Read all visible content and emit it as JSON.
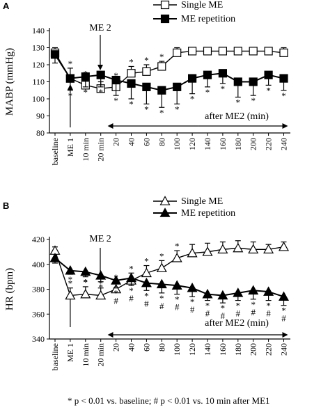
{
  "footnote": "* p < 0.01 vs. baseline; # p < 0.01 vs. 10 min after ME1",
  "chart_data": [
    {
      "type": "line",
      "panel_label": "A",
      "ylabel": "MABP (mmHg)",
      "ylim": [
        80,
        140
      ],
      "yticks": [
        80,
        90,
        100,
        110,
        120,
        130,
        140
      ],
      "categories": [
        "baseline",
        "ME 1",
        "10 min",
        "20 min",
        "20",
        "40",
        "60",
        "80",
        "100",
        "120",
        "140",
        "160",
        "180",
        "200",
        "220",
        "240"
      ],
      "legend_position": "top-right",
      "annotations": {
        "me2_label": "ME 2",
        "after_label": "after ME2 (min)"
      },
      "series": [
        {
          "name": "Single ME",
          "marker": "open-square",
          "values": [
            127,
            112,
            108,
            106,
            107,
            115,
            116,
            119,
            127,
            128,
            128,
            128,
            128,
            128,
            128,
            127
          ],
          "errors": [
            3,
            6,
            4,
            4,
            4,
            4,
            4,
            3,
            3,
            2,
            2,
            2,
            2,
            2,
            2,
            3
          ],
          "sig_star": [
            false,
            true,
            true,
            true,
            true,
            true,
            true,
            true,
            false,
            false,
            false,
            false,
            false,
            false,
            false,
            false
          ],
          "sig_hash": [
            false,
            false,
            false,
            false,
            false,
            false,
            false,
            false,
            false,
            false,
            false,
            false,
            false,
            false,
            false,
            false
          ]
        },
        {
          "name": "ME repetition",
          "marker": "filled-square",
          "values": [
            126,
            112,
            113,
            114,
            111,
            109,
            107,
            105,
            107,
            112,
            114,
            115,
            110,
            110,
            114,
            112
          ],
          "errors": [
            5,
            7,
            6,
            7,
            9,
            9,
            10,
            10,
            10,
            9,
            7,
            6,
            9,
            8,
            6,
            7
          ],
          "sig_star": [
            false,
            true,
            true,
            true,
            true,
            true,
            true,
            true,
            true,
            true,
            true,
            true,
            true,
            true,
            true,
            true
          ],
          "sig_hash": [
            false,
            false,
            false,
            false,
            false,
            false,
            false,
            false,
            false,
            false,
            false,
            false,
            false,
            false,
            false,
            false
          ]
        }
      ]
    },
    {
      "type": "line",
      "panel_label": "B",
      "ylabel": "HR (bpm)",
      "ylim": [
        340,
        420
      ],
      "yticks": [
        340,
        360,
        380,
        400,
        420
      ],
      "categories": [
        "baseline",
        "ME 1",
        "10 min",
        "20 min",
        "20",
        "40",
        "60",
        "80",
        "100",
        "120",
        "140",
        "160",
        "180",
        "200",
        "220",
        "240"
      ],
      "legend_position": "top-right",
      "annotations": {
        "me2_label": "ME 2",
        "after_label": "after ME2 (min)"
      },
      "series": [
        {
          "name": "Single ME",
          "marker": "open-triangle",
          "values": [
            411,
            375,
            376,
            375,
            380,
            387,
            393,
            397,
            405,
            409,
            410,
            412,
            413,
            412,
            412,
            414
          ],
          "errors": [
            3,
            6,
            6,
            6,
            6,
            6,
            6,
            6,
            6,
            7,
            7,
            6,
            6,
            6,
            4,
            4
          ],
          "sig_star": [
            false,
            true,
            true,
            true,
            true,
            true,
            true,
            true,
            true,
            false,
            false,
            false,
            false,
            false,
            false,
            false
          ],
          "sig_hash": [
            false,
            false,
            false,
            false,
            false,
            false,
            false,
            false,
            false,
            false,
            false,
            false,
            false,
            false,
            false,
            false
          ]
        },
        {
          "name": "ME repetition",
          "marker": "filled-triangle",
          "values": [
            405,
            395,
            394,
            391,
            387,
            389,
            385,
            384,
            383,
            381,
            376,
            375,
            377,
            379,
            378,
            374
          ],
          "errors": [
            4,
            3,
            4,
            5,
            6,
            6,
            6,
            7,
            7,
            7,
            5,
            6,
            6,
            7,
            7,
            7
          ],
          "sig_star": [
            false,
            true,
            true,
            true,
            true,
            true,
            true,
            true,
            true,
            true,
            true,
            true,
            true,
            true,
            true,
            true
          ],
          "sig_hash": [
            false,
            false,
            false,
            false,
            true,
            true,
            true,
            true,
            true,
            true,
            true,
            true,
            true,
            true,
            true,
            true
          ]
        }
      ]
    }
  ]
}
